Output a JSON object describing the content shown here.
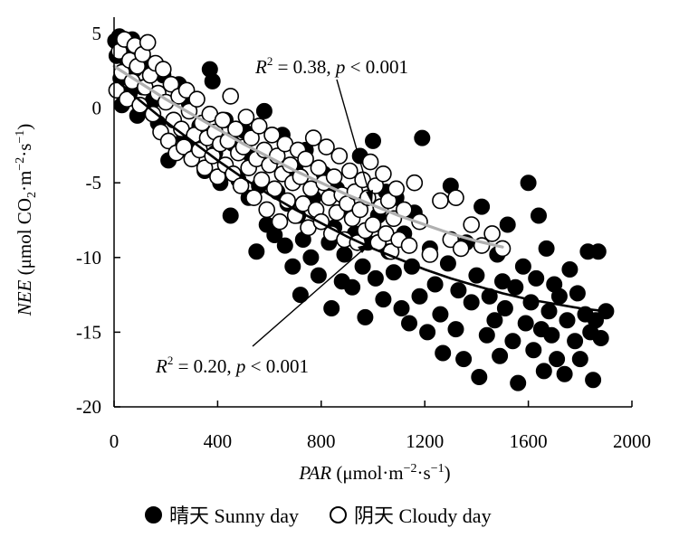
{
  "chart_data": {
    "type": "scatter",
    "xlabel": "PAR (μmol·m⁻²·s⁻¹)",
    "xlabel_italic": "PAR",
    "xlabel_unit": " (μmol·m",
    "ylabel_italic": "NEE",
    "ylabel_unit": " (μmol CO",
    "xlim": [
      0,
      2000
    ],
    "ylim": [
      -20,
      5
    ],
    "xticks": [
      0,
      400,
      800,
      1200,
      1600,
      2000
    ],
    "yticks": [
      5,
      0,
      -5,
      -10,
      -15,
      -20
    ],
    "grid": false,
    "legend_position": "bottom",
    "series": [
      {
        "name": "晴天 Sunny day",
        "marker": "filled-circle",
        "color": "#000000",
        "points": [
          [
            5,
            4.5
          ],
          [
            10,
            3.5
          ],
          [
            20,
            4.8
          ],
          [
            25,
            2.0
          ],
          [
            30,
            0.2
          ],
          [
            40,
            4.0
          ],
          [
            50,
            3.2
          ],
          [
            60,
            1.0
          ],
          [
            70,
            4.6
          ],
          [
            80,
            2.6
          ],
          [
            90,
            -0.5
          ],
          [
            100,
            3.8
          ],
          [
            110,
            1.4
          ],
          [
            130,
            3.0
          ],
          [
            150,
            0.5
          ],
          [
            170,
            -1.0
          ],
          [
            190,
            2.2
          ],
          [
            210,
            -3.5
          ],
          [
            230,
            -0.8
          ],
          [
            250,
            1.6
          ],
          [
            270,
            -2.0
          ],
          [
            290,
            0.3
          ],
          [
            310,
            -2.8
          ],
          [
            330,
            -1.2
          ],
          [
            350,
            -4.2
          ],
          [
            370,
            2.6
          ],
          [
            380,
            1.8
          ],
          [
            390,
            -3.0
          ],
          [
            410,
            -5.0
          ],
          [
            430,
            -0.8
          ],
          [
            450,
            -7.2
          ],
          [
            460,
            -2.4
          ],
          [
            480,
            -4.8
          ],
          [
            500,
            -1.5
          ],
          [
            520,
            -6.0
          ],
          [
            530,
            -3.2
          ],
          [
            550,
            -9.6
          ],
          [
            560,
            -5.2
          ],
          [
            580,
            -0.2
          ],
          [
            590,
            -7.8
          ],
          [
            600,
            -3.6
          ],
          [
            620,
            -8.5
          ],
          [
            630,
            -5.6
          ],
          [
            650,
            -1.8
          ],
          [
            660,
            -9.2
          ],
          [
            670,
            -6.4
          ],
          [
            690,
            -10.6
          ],
          [
            700,
            -4.0
          ],
          [
            710,
            -7.2
          ],
          [
            720,
            -12.5
          ],
          [
            730,
            -8.8
          ],
          [
            740,
            -2.8
          ],
          [
            760,
            -10.0
          ],
          [
            770,
            -6.0
          ],
          [
            790,
            -11.2
          ],
          [
            800,
            -7.6
          ],
          [
            810,
            -4.4
          ],
          [
            830,
            -9.0
          ],
          [
            840,
            -13.4
          ],
          [
            850,
            -8.0
          ],
          [
            860,
            -5.4
          ],
          [
            880,
            -11.6
          ],
          [
            890,
            -9.8
          ],
          [
            900,
            -6.6
          ],
          [
            920,
            -12.0
          ],
          [
            930,
            -8.4
          ],
          [
            950,
            -3.2
          ],
          [
            960,
            -10.6
          ],
          [
            970,
            -14.0
          ],
          [
            980,
            -9.0
          ],
          [
            1000,
            -2.2
          ],
          [
            1010,
            -11.4
          ],
          [
            1020,
            -7.2
          ],
          [
            1040,
            -12.8
          ],
          [
            1050,
            -5.6
          ],
          [
            1060,
            -9.6
          ],
          [
            1080,
            -11.0
          ],
          [
            1090,
            -6.0
          ],
          [
            1110,
            -13.4
          ],
          [
            1120,
            -8.4
          ],
          [
            1140,
            -14.4
          ],
          [
            1150,
            -10.6
          ],
          [
            1160,
            -7.0
          ],
          [
            1180,
            -12.6
          ],
          [
            1190,
            -2.0
          ],
          [
            1210,
            -15.0
          ],
          [
            1220,
            -9.4
          ],
          [
            1240,
            -11.8
          ],
          [
            1260,
            -13.8
          ],
          [
            1270,
            -16.4
          ],
          [
            1290,
            -10.4
          ],
          [
            1300,
            -5.2
          ],
          [
            1320,
            -14.8
          ],
          [
            1330,
            -12.2
          ],
          [
            1350,
            -16.8
          ],
          [
            1360,
            -9.0
          ],
          [
            1380,
            -13.0
          ],
          [
            1400,
            -11.2
          ],
          [
            1410,
            -18.0
          ],
          [
            1420,
            -6.6
          ],
          [
            1440,
            -15.2
          ],
          [
            1450,
            -12.6
          ],
          [
            1470,
            -14.2
          ],
          [
            1480,
            -9.8
          ],
          [
            1490,
            -16.6
          ],
          [
            1500,
            -11.6
          ],
          [
            1510,
            -13.4
          ],
          [
            1520,
            -7.8
          ],
          [
            1540,
            -15.6
          ],
          [
            1550,
            -12.0
          ],
          [
            1560,
            -18.4
          ],
          [
            1580,
            -10.6
          ],
          [
            1590,
            -14.4
          ],
          [
            1600,
            -5.0
          ],
          [
            1610,
            -13.0
          ],
          [
            1620,
            -16.2
          ],
          [
            1630,
            -11.4
          ],
          [
            1640,
            -7.2
          ],
          [
            1650,
            -14.8
          ],
          [
            1660,
            -17.6
          ],
          [
            1670,
            -9.4
          ],
          [
            1680,
            -13.6
          ],
          [
            1690,
            -15.2
          ],
          [
            1700,
            -11.8
          ],
          [
            1710,
            -16.8
          ],
          [
            1720,
            -12.6
          ],
          [
            1740,
            -17.8
          ],
          [
            1750,
            -14.2
          ],
          [
            1760,
            -10.8
          ],
          [
            1780,
            -15.6
          ],
          [
            1790,
            -12.4
          ],
          [
            1800,
            -16.8
          ],
          [
            1820,
            -13.8
          ],
          [
            1830,
            -9.6
          ],
          [
            1840,
            -15.0
          ],
          [
            1850,
            -18.2
          ],
          [
            1860,
            -14.2
          ],
          [
            1870,
            -9.6
          ],
          [
            1880,
            -15.4
          ],
          [
            1900,
            -13.6
          ]
        ]
      },
      {
        "name": "阴天 Cloudy day",
        "marker": "hollow-circle",
        "color": "#000000",
        "points": [
          [
            10,
            1.2
          ],
          [
            20,
            3.8
          ],
          [
            30,
            2.4
          ],
          [
            40,
            4.6
          ],
          [
            50,
            0.6
          ],
          [
            60,
            3.2
          ],
          [
            70,
            1.8
          ],
          [
            80,
            4.2
          ],
          [
            90,
            2.8
          ],
          [
            100,
            0.2
          ],
          [
            110,
            3.6
          ],
          [
            120,
            1.4
          ],
          [
            130,
            4.4
          ],
          [
            140,
            2.2
          ],
          [
            150,
            -0.4
          ],
          [
            160,
            3.0
          ],
          [
            170,
            1.0
          ],
          [
            180,
            -1.6
          ],
          [
            190,
            2.6
          ],
          [
            200,
            0.4
          ],
          [
            210,
            -2.2
          ],
          [
            220,
            1.6
          ],
          [
            230,
            -0.8
          ],
          [
            240,
            -3.0
          ],
          [
            250,
            0.8
          ],
          [
            260,
            -1.4
          ],
          [
            270,
            -2.6
          ],
          [
            280,
            1.2
          ],
          [
            290,
            -0.2
          ],
          [
            300,
            -3.4
          ],
          [
            310,
            -1.8
          ],
          [
            320,
            0.6
          ],
          [
            330,
            -2.8
          ],
          [
            340,
            -1.0
          ],
          [
            350,
            -4.0
          ],
          [
            360,
            -2.0
          ],
          [
            370,
            -0.4
          ],
          [
            380,
            -3.2
          ],
          [
            390,
            -1.6
          ],
          [
            400,
            -4.6
          ],
          [
            410,
            -2.4
          ],
          [
            420,
            -0.8
          ],
          [
            430,
            -3.8
          ],
          [
            440,
            -2.2
          ],
          [
            450,
            0.8
          ],
          [
            460,
            -4.4
          ],
          [
            470,
            -1.4
          ],
          [
            480,
            -3.0
          ],
          [
            490,
            -5.2
          ],
          [
            500,
            -2.6
          ],
          [
            510,
            -0.6
          ],
          [
            520,
            -4.0
          ],
          [
            530,
            -2.0
          ],
          [
            540,
            -6.0
          ],
          [
            550,
            -3.4
          ],
          [
            560,
            -1.2
          ],
          [
            570,
            -4.8
          ],
          [
            580,
            -2.8
          ],
          [
            590,
            -6.8
          ],
          [
            600,
            -3.8
          ],
          [
            610,
            -1.8
          ],
          [
            620,
            -5.4
          ],
          [
            630,
            -3.2
          ],
          [
            640,
            -7.6
          ],
          [
            650,
            -4.4
          ],
          [
            660,
            -2.4
          ],
          [
            670,
            -6.2
          ],
          [
            680,
            -3.8
          ],
          [
            690,
            -5.0
          ],
          [
            700,
            -7.2
          ],
          [
            710,
            -2.8
          ],
          [
            720,
            -4.6
          ],
          [
            730,
            -6.4
          ],
          [
            740,
            -3.4
          ],
          [
            750,
            -8.0
          ],
          [
            760,
            -5.4
          ],
          [
            770,
            -2.0
          ],
          [
            780,
            -6.8
          ],
          [
            790,
            -4.0
          ],
          [
            800,
            -7.6
          ],
          [
            810,
            -5.0
          ],
          [
            820,
            -2.6
          ],
          [
            830,
            -6.0
          ],
          [
            840,
            -8.4
          ],
          [
            850,
            -4.6
          ],
          [
            860,
            -7.0
          ],
          [
            870,
            -3.2
          ],
          [
            880,
            -5.8
          ],
          [
            890,
            -8.8
          ],
          [
            900,
            -6.4
          ],
          [
            910,
            -4.2
          ],
          [
            920,
            -7.4
          ],
          [
            930,
            -5.6
          ],
          [
            940,
            -9.0
          ],
          [
            950,
            -6.8
          ],
          [
            960,
            -4.8
          ],
          [
            970,
            -8.2
          ],
          [
            980,
            -6.0
          ],
          [
            990,
            -3.6
          ],
          [
            1000,
            -7.8
          ],
          [
            1010,
            -5.2
          ],
          [
            1020,
            -9.0
          ],
          [
            1030,
            -6.6
          ],
          [
            1040,
            -4.4
          ],
          [
            1050,
            -8.4
          ],
          [
            1060,
            -6.2
          ],
          [
            1070,
            -9.6
          ],
          [
            1080,
            -7.4
          ],
          [
            1090,
            -5.4
          ],
          [
            1100,
            -8.8
          ],
          [
            1120,
            -6.8
          ],
          [
            1140,
            -9.2
          ],
          [
            1160,
            -5.0
          ],
          [
            1180,
            -7.6
          ],
          [
            1220,
            -9.8
          ],
          [
            1260,
            -6.2
          ],
          [
            1300,
            -8.8
          ],
          [
            1320,
            -6.0
          ],
          [
            1340,
            -9.4
          ],
          [
            1380,
            -7.8
          ],
          [
            1420,
            -9.2
          ],
          [
            1460,
            -8.4
          ],
          [
            1500,
            -9.4
          ]
        ]
      }
    ],
    "fits": [
      {
        "series": "晴天 Sunny day",
        "x": [
          0,
          100,
          200,
          300,
          400,
          500,
          600,
          700,
          800,
          900,
          1000,
          1100,
          1200,
          1300,
          1400,
          1500,
          1600,
          1700,
          1800,
          1900
        ],
        "y": [
          2.0,
          0.5,
          -0.9,
          -2.2,
          -3.5,
          -4.7,
          -5.8,
          -6.8,
          -7.7,
          -8.6,
          -9.4,
          -10.1,
          -10.8,
          -11.4,
          -11.9,
          -12.4,
          -12.8,
          -13.1,
          -13.4,
          -13.6
        ],
        "color": "#000000",
        "r2_label": "R",
        "r2_text": " = 0.20,  ",
        "p_label": "p",
        "p_text": " < 0.001"
      },
      {
        "series": "阴天 Cloudy day",
        "x": [
          0,
          100,
          200,
          300,
          400,
          500,
          600,
          700,
          800,
          900,
          1000,
          1100,
          1200,
          1300,
          1400,
          1500
        ],
        "y": [
          2.8,
          1.7,
          0.6,
          -0.4,
          -1.4,
          -2.4,
          -3.3,
          -4.2,
          -5.0,
          -5.8,
          -6.5,
          -7.2,
          -7.8,
          -8.4,
          -8.9,
          -9.3
        ],
        "color": "#b0b0b0",
        "r2_label": "R",
        "r2_text": " = 0.38,  ",
        "p_label": "p",
        "p_text": " < 0.001"
      }
    ]
  },
  "axis_label_parts": {
    "x_sup1": "−2",
    "x_mid": "·s",
    "x_sup2": "−1",
    "x_end": ")",
    "y_sub": "2",
    "y_mid": "·m",
    "y_sup1": "−2",
    "y_mid2": "·s",
    "y_sup2": "−1",
    "y_end": ")",
    "r_sup": "2"
  },
  "legend": {
    "sunny_label": "晴天 Sunny day",
    "cloudy_label": "阴天 Cloudy day"
  }
}
